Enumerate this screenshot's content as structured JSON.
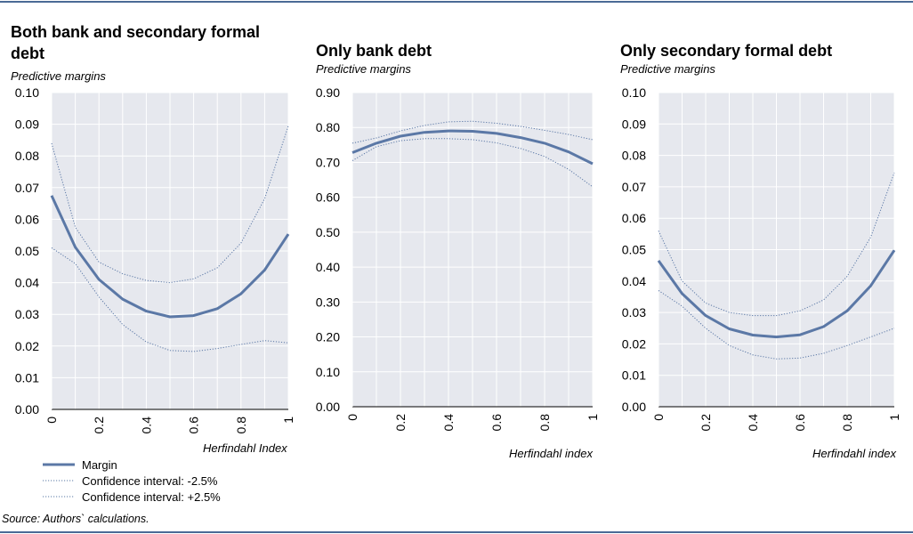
{
  "source": "Source: Authors` calculations.",
  "legend": {
    "items": [
      {
        "label": "Margin",
        "style": "solid"
      },
      {
        "label": "Confidence interval: -2.5%",
        "style": "dotted"
      },
      {
        "label": "Confidence interval: +2.5%",
        "style": "dotted"
      }
    ]
  },
  "colors": {
    "plot_bg": "#e6e8ee",
    "grid": "#ffffff",
    "line": "#5b78a6",
    "rule": "#4a6a96"
  },
  "chart_data": [
    {
      "type": "line",
      "title": "Both bank and secondary formal debt",
      "subtitle": "Predictive margins",
      "xlabel": "Herfindahl Index",
      "ylabel": "",
      "x": [
        0,
        0.1,
        0.2,
        0.3,
        0.4,
        0.5,
        0.6,
        0.7,
        0.8,
        0.9,
        1
      ],
      "xticks": [
        0,
        0.2,
        0.4,
        0.6,
        0.8,
        1
      ],
      "xtick_labels": [
        "0",
        "0.2",
        "0.4",
        "0.6",
        "0.8",
        "1"
      ],
      "ylim": [
        0,
        0.1
      ],
      "yticks": [
        0,
        0.01,
        0.02,
        0.03,
        0.04,
        0.05,
        0.06,
        0.07,
        0.08,
        0.09,
        0.1
      ],
      "ytick_labels": [
        "0.00",
        "0.01",
        "0.02",
        "0.03",
        "0.04",
        "0.05",
        "0.06",
        "0.07",
        "0.08",
        "0.09",
        "0.10"
      ],
      "series": [
        {
          "name": "Margin",
          "values": [
            0.0675,
            0.0512,
            0.041,
            0.0348,
            0.031,
            0.0292,
            0.0296,
            0.0318,
            0.0365,
            0.044,
            0.0553
          ]
        },
        {
          "name": "Confidence interval: -2.5%",
          "values": [
            0.051,
            0.046,
            0.0355,
            0.0268,
            0.0213,
            0.0186,
            0.0183,
            0.0192,
            0.0205,
            0.0217,
            0.021
          ]
        },
        {
          "name": "Confidence interval: +2.5%",
          "values": [
            0.084,
            0.0575,
            0.0465,
            0.0428,
            0.0407,
            0.04,
            0.0412,
            0.0447,
            0.0525,
            0.0665,
            0.0895
          ]
        }
      ]
    },
    {
      "type": "line",
      "title": "Only bank debt",
      "subtitle": "Predictive margins",
      "xlabel": "Herfindahl index",
      "ylabel": "",
      "x": [
        0,
        0.1,
        0.2,
        0.3,
        0.4,
        0.5,
        0.6,
        0.7,
        0.8,
        0.9,
        1
      ],
      "xticks": [
        0,
        0.2,
        0.4,
        0.6,
        0.8,
        1
      ],
      "xtick_labels": [
        "0",
        "0.2",
        "0.4",
        "0.6",
        "0.8",
        "1"
      ],
      "ylim": [
        0,
        0.9
      ],
      "yticks": [
        0,
        0.1,
        0.2,
        0.3,
        0.4,
        0.5,
        0.6,
        0.7,
        0.8,
        0.9
      ],
      "ytick_labels": [
        "0.00",
        "0.10",
        "0.20",
        "0.30",
        "0.40",
        "0.50",
        "0.60",
        "0.70",
        "0.80",
        "0.90"
      ],
      "series": [
        {
          "name": "Margin",
          "values": [
            0.728,
            0.755,
            0.775,
            0.786,
            0.79,
            0.789,
            0.783,
            0.771,
            0.755,
            0.73,
            0.696
          ]
        },
        {
          "name": "Confidence interval: -2.5%",
          "values": [
            0.705,
            0.745,
            0.762,
            0.768,
            0.768,
            0.765,
            0.756,
            0.74,
            0.717,
            0.68,
            0.63
          ]
        },
        {
          "name": "Confidence interval: +2.5%",
          "values": [
            0.755,
            0.77,
            0.79,
            0.806,
            0.816,
            0.818,
            0.812,
            0.803,
            0.792,
            0.78,
            0.765
          ]
        }
      ]
    },
    {
      "type": "line",
      "title": "Only secondary formal debt",
      "subtitle": "Predictive margins",
      "xlabel": "Herfindahl index",
      "ylabel": "",
      "x": [
        0,
        0.1,
        0.2,
        0.3,
        0.4,
        0.5,
        0.6,
        0.7,
        0.8,
        0.9,
        1
      ],
      "xticks": [
        0,
        0.2,
        0.4,
        0.6,
        0.8,
        1
      ],
      "xtick_labels": [
        "0",
        "0.2",
        "0.4",
        "0.6",
        "0.8",
        "1"
      ],
      "ylim": [
        0,
        0.1
      ],
      "yticks": [
        0,
        0.01,
        0.02,
        0.03,
        0.04,
        0.05,
        0.06,
        0.07,
        0.08,
        0.09,
        0.1
      ],
      "ytick_labels": [
        "0.00",
        "0.01",
        "0.02",
        "0.03",
        "0.04",
        "0.05",
        "0.06",
        "0.07",
        "0.08",
        "0.09",
        "0.10"
      ],
      "series": [
        {
          "name": "Margin",
          "values": [
            0.0465,
            0.036,
            0.029,
            0.0248,
            0.0228,
            0.0222,
            0.0229,
            0.0255,
            0.0305,
            0.0385,
            0.0498
          ]
        },
        {
          "name": "Confidence interval: -2.5%",
          "values": [
            0.037,
            0.032,
            0.025,
            0.0195,
            0.0165,
            0.0152,
            0.0155,
            0.017,
            0.0195,
            0.0222,
            0.025
          ]
        },
        {
          "name": "Confidence interval: +2.5%",
          "values": [
            0.056,
            0.04,
            0.033,
            0.03,
            0.029,
            0.029,
            0.0305,
            0.034,
            0.0415,
            0.054,
            0.0745
          ]
        }
      ]
    }
  ]
}
